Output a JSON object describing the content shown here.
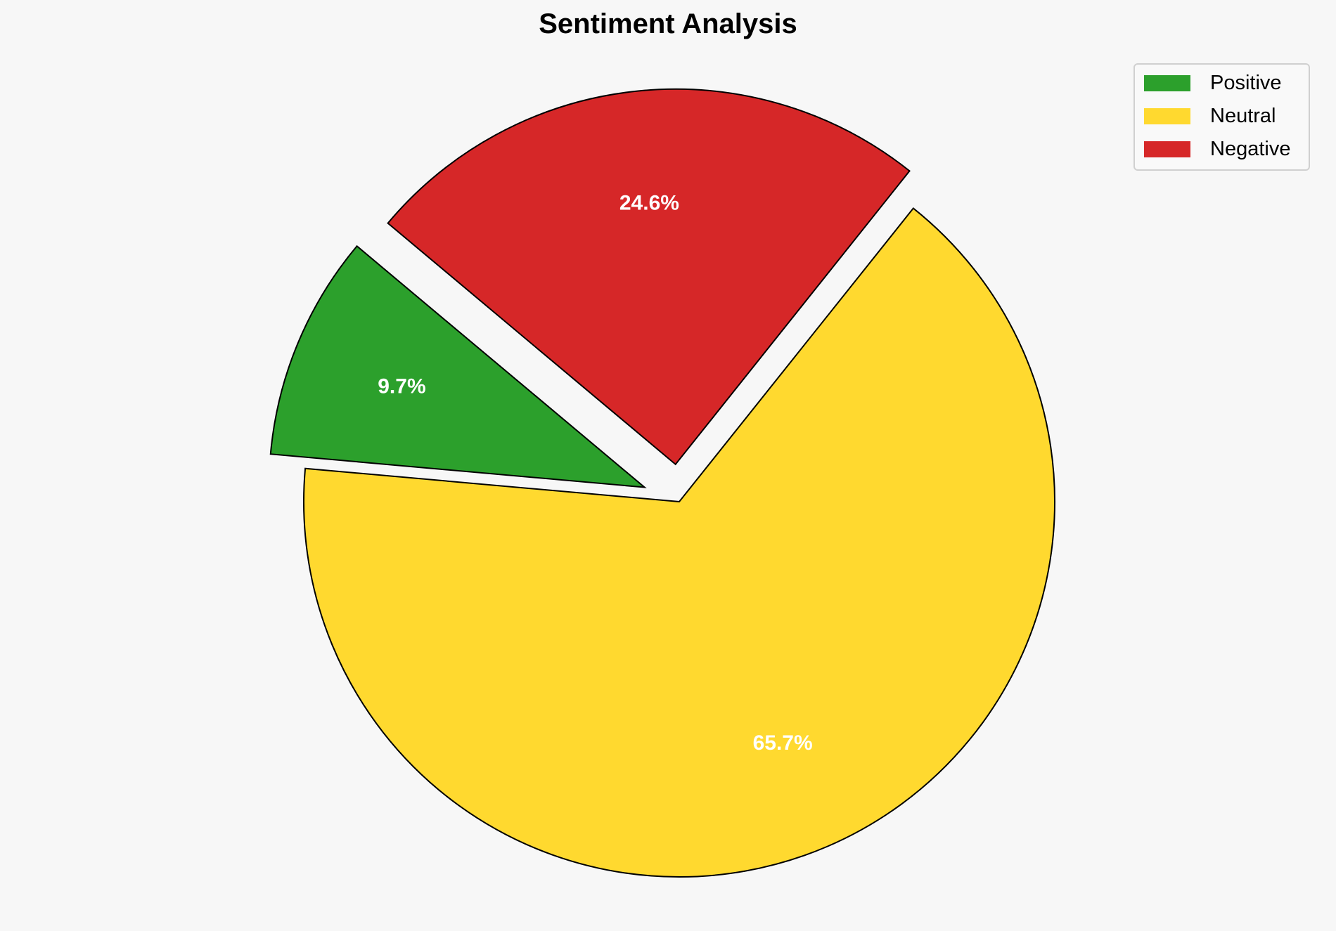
{
  "chart_data": {
    "type": "pie",
    "title": "Sentiment Analysis",
    "categories": [
      "Positive",
      "Neutral",
      "Negative"
    ],
    "values": [
      9.7,
      65.7,
      24.6
    ],
    "labels": [
      "9.7%",
      "65.7%",
      "24.6%"
    ],
    "colors": [
      "#2ca02c",
      "#ffd92f",
      "#d62728"
    ],
    "explode": [
      0.1,
      0,
      0.1
    ],
    "start_angle": 140,
    "legend_position": "top-right",
    "edge_color": "#000000"
  }
}
